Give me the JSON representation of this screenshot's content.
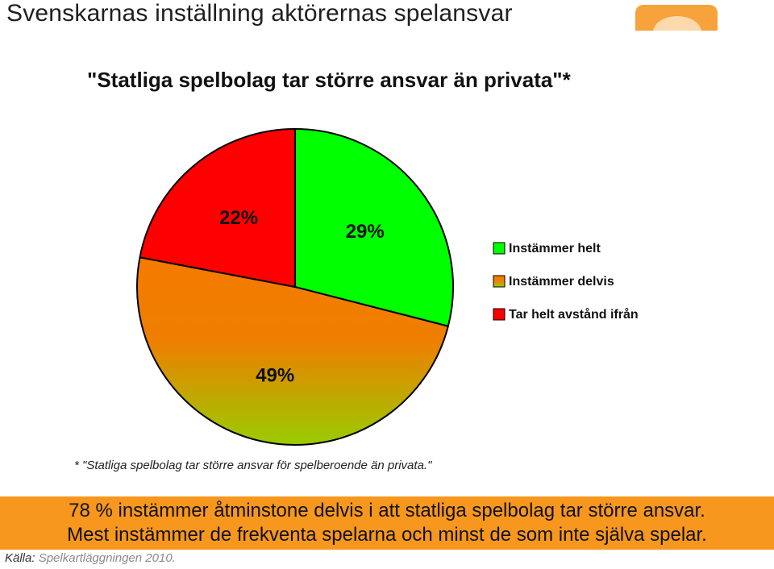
{
  "slide": {
    "title": "Svenskarnas inställning aktörernas spelansvar"
  },
  "colors": {
    "green": "#00ff00",
    "orange_top": "#f57a00",
    "olive_bottom": "#99cc00",
    "red": "#ff0000",
    "summary_bg": "#f7971d",
    "logo_orange": "#f7a23a"
  },
  "chart_data": {
    "type": "pie",
    "title": "\"Statliga spelbolag tar större ansvar än privata\"*",
    "slices": [
      {
        "label": "Instämmer helt",
        "value": 29,
        "display": "29%",
        "color": "#00ff00"
      },
      {
        "label": "Instämmer delvis",
        "value": 49,
        "display": "49%",
        "color": "#d9902a",
        "gradient": [
          "#f57a00",
          "#99cc00"
        ]
      },
      {
        "label": "Tar helt avstånd ifrån",
        "value": 22,
        "display": "22%",
        "color": "#ff0000"
      }
    ],
    "legend_position": "right",
    "legend": [
      "Instämmer helt",
      "Instämmer delvis",
      "Tar helt avstånd ifrån"
    ]
  },
  "footnote": "* \"Statliga spelbolag tar större ansvar för spelberoende än privata.\"",
  "summary": {
    "line1": "78 % instämmer åtminstone delvis i att statliga spelbolag tar större ansvar.",
    "line2": "Mest instämmer de frekventa spelarna och minst de som inte själva spelar."
  },
  "source": {
    "label": "Källa:",
    "value": "Spelkartläggningen 2010."
  }
}
